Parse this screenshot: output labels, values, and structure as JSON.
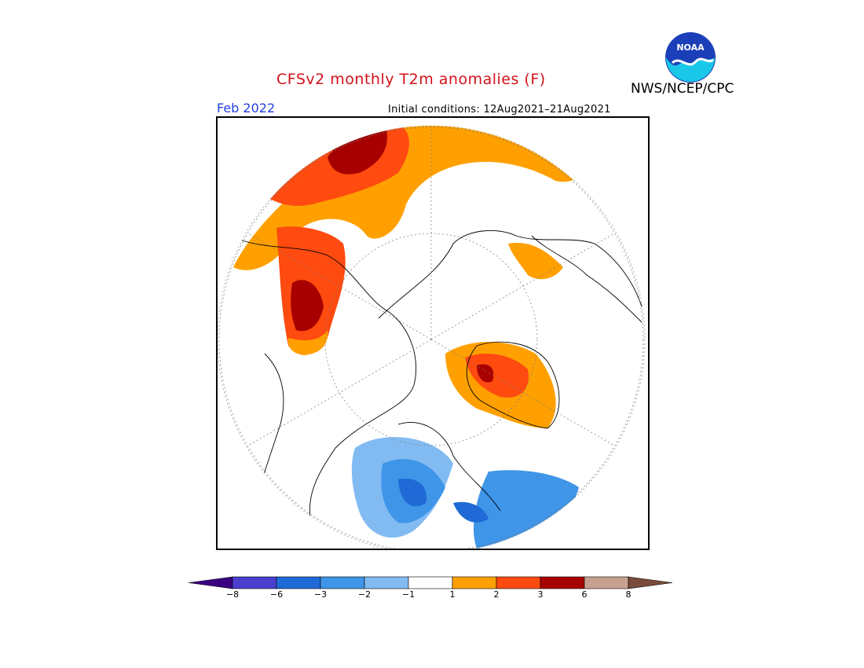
{
  "title": "CFSv2 monthly T2m anomalies (F)",
  "agency": "NWS/NCEP/CPC",
  "logo_text": "NOAA",
  "period": "Feb 2022",
  "initial_conditions": "Initial conditions:  12Aug2021–21Aug2021",
  "legend": {
    "tick_labels": [
      "−8",
      "−6",
      "−3",
      "−2",
      "−1",
      "1",
      "2",
      "3",
      "6",
      "8"
    ],
    "bins": [
      {
        "range": "< -8",
        "color": "#3a0080"
      },
      {
        "range": "-8 to -6",
        "color": "#4a3fcf"
      },
      {
        "range": "-6 to -3",
        "color": "#1f6ad6"
      },
      {
        "range": "-3 to -2",
        "color": "#3f95e8"
      },
      {
        "range": "-2 to -1",
        "color": "#82bbf2"
      },
      {
        "range": "-1 to 1",
        "color": "#ffffff"
      },
      {
        "range": "1 to 2",
        "color": "#ffa000"
      },
      {
        "range": "2 to 3",
        "color": "#ff4a10"
      },
      {
        "range": "3 to 6",
        "color": "#a80000"
      },
      {
        "range": "6 to 8",
        "color": "#c8a090"
      },
      {
        "range": "> 8",
        "color": "#7a4a3a"
      }
    ]
  },
  "colors": {
    "title": "#d4111a",
    "period": "#2340e0",
    "cold_light": "#82bbf2",
    "cold_mid": "#3f95e8",
    "cold_dark": "#1f6ad6",
    "warm_orange": "#ffa000",
    "warm_red": "#ff4a10",
    "warm_dark": "#a80000"
  }
}
